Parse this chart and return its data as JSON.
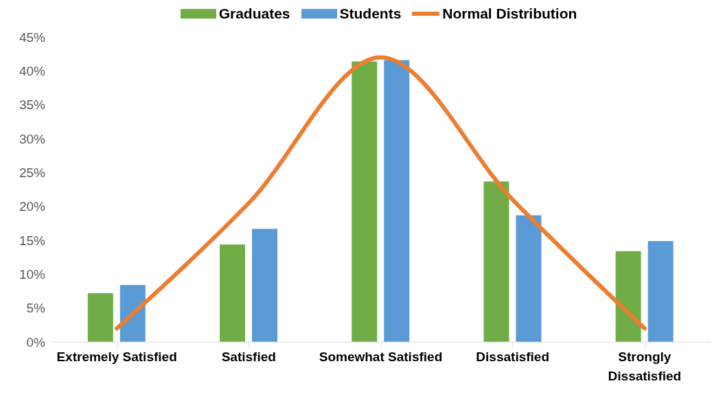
{
  "chart_data": {
    "type": "bar",
    "categories": [
      "Extremely Satisfied",
      "Satisfied",
      "Somewhat Satisfied",
      "Dissatisfied",
      "Strongly Dissatisfied"
    ],
    "series": [
      {
        "name": "Graduates",
        "color": "#70ad47",
        "values": [
          7.2,
          14.4,
          41.4,
          23.7,
          13.4
        ]
      },
      {
        "name": "Students",
        "color": "#5b9bd5",
        "values": [
          8.4,
          16.7,
          41.6,
          18.7,
          14.9
        ]
      },
      {
        "name": "Normal Distribution",
        "type": "line",
        "color": "#ed7d31",
        "values": [
          2,
          20.5,
          42,
          21,
          2
        ],
        "marker": "none"
      }
    ],
    "ylim": [
      0,
      45
    ],
    "yticks": [
      {
        "value": 0,
        "label": "0%"
      },
      {
        "value": 5,
        "label": "5%"
      },
      {
        "value": 10,
        "label": "10%"
      },
      {
        "value": 15,
        "label": "15%"
      },
      {
        "value": 20,
        "label": "20%"
      },
      {
        "value": 25,
        "label": "25%"
      },
      {
        "value": 30,
        "label": "30%"
      },
      {
        "value": 35,
        "label": "35%"
      },
      {
        "value": 40,
        "label": "40%"
      },
      {
        "value": 45,
        "label": "45%"
      }
    ],
    "grid": false,
    "legend": "top"
  }
}
